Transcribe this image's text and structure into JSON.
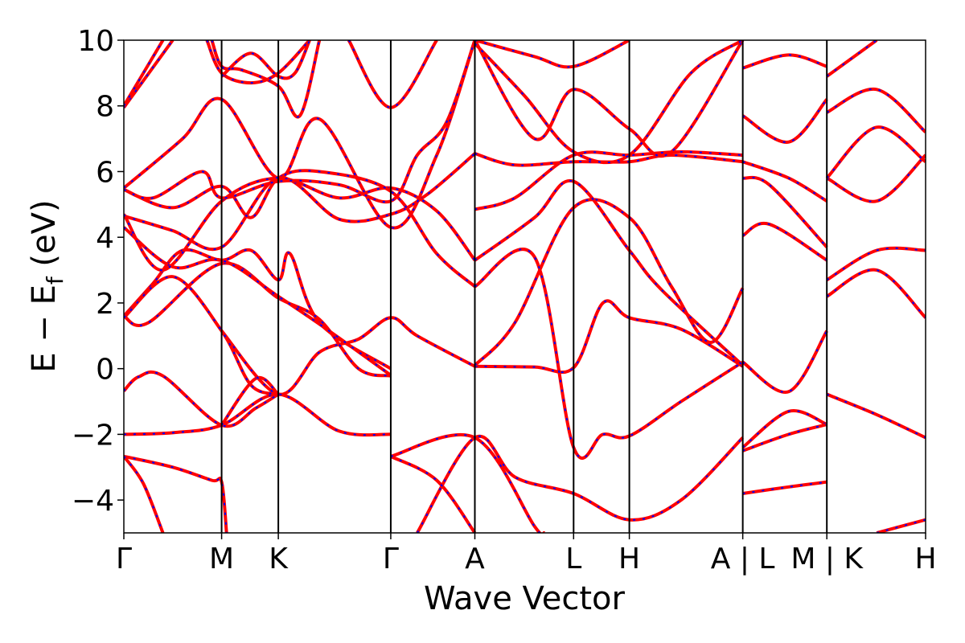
{
  "chart_data": {
    "type": "line",
    "xlabel": "Wave Vector",
    "ylabel_parts": {
      "main": "E − E",
      "sub": "f",
      "unit": " (eV)"
    },
    "ylim": [
      -5,
      10
    ],
    "yticks": [
      "−4",
      "−2",
      "0",
      "2",
      "4",
      "6",
      "8",
      "10"
    ],
    "ytick_values": [
      -4,
      -2,
      0,
      2,
      4,
      6,
      8,
      10
    ],
    "xlim": [
      0,
      8.2
    ],
    "kpath_ticks": [
      {
        "label": "Γ",
        "x": 0.0
      },
      {
        "label": "M",
        "x": 1.0
      },
      {
        "label": "K",
        "x": 1.58
      },
      {
        "label": "Γ",
        "x": 2.73
      },
      {
        "label": "A",
        "x": 3.59
      },
      {
        "label": "L",
        "x": 4.6
      },
      {
        "label": "H",
        "x": 5.17
      },
      {
        "label": "A | L",
        "x": 6.33
      },
      {
        "label": "M | K",
        "x": 7.19
      },
      {
        "label": "H",
        "x": 8.2
      }
    ],
    "colors": {
      "band_primary": "#ff0000",
      "band_overlay": "#0000ff",
      "vline": "#000000"
    },
    "series": [
      {
        "points": [
          [
            0,
            -2.0
          ],
          [
            0.5,
            -1.95
          ],
          [
            1.0,
            -1.72
          ],
          [
            1.58,
            -0.78
          ],
          [
            2.2,
            -1.9
          ],
          [
            2.73,
            -2.0
          ]
        ]
      },
      {
        "points": [
          [
            0,
            -0.68
          ],
          [
            0.15,
            -0.25
          ],
          [
            0.4,
            -0.22
          ],
          [
            1.0,
            -1.72
          ],
          [
            1.35,
            -1.2
          ],
          [
            1.58,
            -0.78
          ]
        ]
      },
      {
        "points": [
          [
            1.0,
            -1.72
          ],
          [
            1.35,
            -0.3
          ],
          [
            1.58,
            -0.78
          ]
        ]
      },
      {
        "points": [
          [
            0,
            -2.67
          ],
          [
            0.5,
            -3.0
          ],
          [
            0.9,
            -3.4
          ],
          [
            1.0,
            -3.45
          ],
          [
            1.05,
            -5.0
          ]
        ]
      },
      {
        "points": [
          [
            0,
            -2.67
          ],
          [
            0.2,
            -3.5
          ],
          [
            0.4,
            -5.0
          ]
        ]
      },
      {
        "points": [
          [
            1.0,
            1.15
          ],
          [
            1.58,
            -0.78
          ],
          [
            2.0,
            0.5
          ],
          [
            2.4,
            0.9
          ],
          [
            2.73,
            1.55
          ],
          [
            3.0,
            1.0
          ],
          [
            3.59,
            0.07
          ]
        ]
      },
      {
        "points": [
          [
            0,
            1.6
          ],
          [
            0.3,
            2.6
          ],
          [
            0.6,
            3.6
          ],
          [
            1.0,
            3.3
          ],
          [
            1.3,
            3.6
          ],
          [
            1.58,
            2.7
          ],
          [
            1.7,
            3.5
          ],
          [
            2.0,
            1.4
          ],
          [
            2.73,
            0.0
          ]
        ]
      },
      {
        "points": [
          [
            0,
            1.6
          ],
          [
            0.25,
            1.4
          ],
          [
            1.0,
            3.2
          ],
          [
            1.58,
            2.15
          ],
          [
            2.0,
            1.5
          ],
          [
            2.4,
            0.0
          ],
          [
            2.73,
            -0.22
          ]
        ]
      },
      {
        "points": [
          [
            0,
            1.55
          ],
          [
            0.5,
            2.8
          ],
          [
            1.0,
            1.15
          ],
          [
            1.3,
            -0.5
          ],
          [
            1.58,
            -0.78
          ]
        ]
      },
      {
        "points": [
          [
            0,
            4.3
          ],
          [
            0.5,
            3.1
          ],
          [
            1.0,
            3.3
          ],
          [
            1.58,
            2.2
          ],
          [
            2.1,
            1.15
          ],
          [
            2.73,
            -0.2
          ]
        ]
      },
      {
        "points": [
          [
            0,
            4.65
          ],
          [
            0.5,
            4.2
          ],
          [
            1.0,
            3.7
          ],
          [
            1.58,
            5.8
          ],
          [
            2.2,
            4.55
          ],
          [
            2.73,
            4.7
          ],
          [
            3.1,
            5.3
          ],
          [
            3.59,
            6.55
          ]
        ]
      },
      {
        "points": [
          [
            0,
            4.7
          ],
          [
            0.4,
            3.0
          ],
          [
            1.0,
            5.1
          ],
          [
            1.58,
            5.8
          ],
          [
            2.2,
            5.2
          ],
          [
            2.73,
            5.5
          ],
          [
            3.2,
            4.8
          ],
          [
            3.59,
            3.3
          ]
        ]
      },
      {
        "points": [
          [
            0,
            5.45
          ],
          [
            0.5,
            4.9
          ],
          [
            1.0,
            5.55
          ],
          [
            1.3,
            4.6
          ],
          [
            1.58,
            5.8
          ],
          [
            2.0,
            6.0
          ],
          [
            2.73,
            5.4
          ],
          [
            3.2,
            3.5
          ],
          [
            3.59,
            2.5
          ]
        ]
      },
      {
        "points": [
          [
            0,
            5.5
          ],
          [
            0.6,
            7.0
          ],
          [
            1.0,
            8.2
          ],
          [
            1.58,
            5.8
          ],
          [
            2.0,
            7.6
          ],
          [
            2.73,
            4.3
          ],
          [
            3.2,
            6.5
          ],
          [
            3.59,
            10.0
          ]
        ]
      },
      {
        "points": [
          [
            0,
            5.45
          ],
          [
            0.3,
            5.2
          ],
          [
            0.8,
            6.0
          ],
          [
            1.0,
            5.2
          ],
          [
            1.58,
            5.7
          ],
          [
            2.2,
            5.6
          ],
          [
            2.73,
            5.1
          ],
          [
            3.0,
            6.5
          ],
          [
            3.3,
            7.5
          ],
          [
            3.59,
            10.0
          ]
        ]
      },
      {
        "points": [
          [
            0,
            7.95
          ],
          [
            0.5,
            10.0
          ]
        ]
      },
      {
        "points": [
          [
            0,
            8.0
          ],
          [
            0.4,
            10.0
          ]
        ]
      },
      {
        "points": [
          [
            0.9,
            10.0
          ],
          [
            1.0,
            9.2
          ],
          [
            1.2,
            9.1
          ],
          [
            1.58,
            8.6
          ],
          [
            1.8,
            7.7
          ],
          [
            2.0,
            10.0
          ]
        ]
      },
      {
        "points": [
          [
            0.85,
            10.0
          ],
          [
            1.0,
            9.0
          ],
          [
            1.3,
            8.7
          ],
          [
            1.58,
            9.0
          ],
          [
            1.9,
            10.0
          ]
        ]
      },
      {
        "points": [
          [
            1.0,
            8.9
          ],
          [
            1.3,
            9.6
          ],
          [
            1.58,
            8.9
          ],
          [
            1.75,
            9.0
          ],
          [
            1.9,
            10.0
          ]
        ]
      },
      {
        "points": [
          [
            2.3,
            10.0
          ],
          [
            2.73,
            7.95
          ],
          [
            3.2,
            10.0
          ]
        ]
      },
      {
        "points": [
          [
            3.0,
            -5.0
          ],
          [
            3.59,
            -2.1
          ],
          [
            4.0,
            -3.3
          ],
          [
            4.6,
            -3.8
          ],
          [
            5.17,
            -4.6
          ],
          [
            5.7,
            -4.0
          ],
          [
            6.33,
            -2.1
          ]
        ]
      },
      {
        "points": [
          [
            2.73,
            -2.67
          ],
          [
            3.2,
            -3.4
          ],
          [
            3.59,
            -5.0
          ]
        ]
      },
      {
        "points": [
          [
            2.73,
            -2.67
          ],
          [
            3.59,
            -2.1
          ],
          [
            4.2,
            -4.8
          ],
          [
            4.3,
            -5.0
          ]
        ]
      },
      {
        "points": [
          [
            3.59,
            0.07
          ],
          [
            4.2,
            0.05
          ],
          [
            4.6,
            0.03
          ],
          [
            4.9,
            2.0
          ],
          [
            5.17,
            1.55
          ],
          [
            5.7,
            1.2
          ],
          [
            6.33,
            0.07
          ]
        ]
      },
      {
        "points": [
          [
            3.59,
            0.1
          ],
          [
            4.0,
            1.4
          ],
          [
            4.6,
            4.9
          ],
          [
            5.17,
            4.6
          ],
          [
            5.6,
            2.5
          ],
          [
            6.0,
            0.8
          ],
          [
            6.33,
            2.45
          ]
        ]
      },
      {
        "points": [
          [
            3.59,
            2.5
          ],
          [
            4.2,
            3.4
          ],
          [
            4.6,
            -2.4
          ],
          [
            4.9,
            -2.0
          ],
          [
            5.17,
            -2.05
          ],
          [
            5.7,
            -1.0
          ],
          [
            6.33,
            0.2
          ]
        ]
      },
      {
        "points": [
          [
            3.59,
            3.3
          ],
          [
            4.2,
            4.6
          ],
          [
            4.6,
            5.7
          ],
          [
            5.17,
            3.6
          ],
          [
            5.5,
            2.4
          ],
          [
            6.33,
            0.1
          ]
        ]
      },
      {
        "points": [
          [
            3.59,
            4.85
          ],
          [
            4.0,
            5.2
          ],
          [
            4.6,
            6.5
          ],
          [
            5.17,
            6.5
          ],
          [
            5.7,
            6.6
          ],
          [
            6.33,
            6.5
          ]
        ]
      },
      {
        "points": [
          [
            3.59,
            6.55
          ],
          [
            4.0,
            6.2
          ],
          [
            4.6,
            6.3
          ],
          [
            5.17,
            6.3
          ],
          [
            5.6,
            6.5
          ],
          [
            6.33,
            6.3
          ]
        ]
      },
      {
        "points": [
          [
            3.59,
            10.0
          ],
          [
            4.2,
            7.0
          ],
          [
            4.6,
            8.5
          ],
          [
            5.17,
            7.3
          ],
          [
            5.6,
            6.6
          ],
          [
            6.33,
            10.0
          ]
        ]
      },
      {
        "points": [
          [
            3.59,
            10.0
          ],
          [
            4.2,
            9.5
          ],
          [
            4.6,
            9.2
          ],
          [
            5.17,
            10.0
          ]
        ]
      },
      {
        "points": [
          [
            3.59,
            9.9
          ],
          [
            4.1,
            8.3
          ],
          [
            4.6,
            6.6
          ],
          [
            5.17,
            6.5
          ],
          [
            5.8,
            9.0
          ],
          [
            6.33,
            10.0
          ]
        ]
      },
      {
        "points": [
          [
            6.33,
            -3.8
          ],
          [
            6.8,
            -3.6
          ],
          [
            7.19,
            -3.45
          ]
        ]
      },
      {
        "points": [
          [
            6.33,
            -2.4
          ],
          [
            6.8,
            -1.3
          ],
          [
            7.19,
            -1.7
          ]
        ]
      },
      {
        "points": [
          [
            6.33,
            -2.5
          ],
          [
            6.8,
            -2.0
          ],
          [
            7.19,
            -1.7
          ]
        ]
      },
      {
        "points": [
          [
            6.33,
            0.2
          ],
          [
            6.8,
            -0.7
          ],
          [
            7.19,
            1.15
          ]
        ]
      },
      {
        "points": [
          [
            6.33,
            4.05
          ],
          [
            6.6,
            4.4
          ],
          [
            7.19,
            3.3
          ]
        ]
      },
      {
        "points": [
          [
            6.33,
            5.8
          ],
          [
            6.6,
            5.6
          ],
          [
            7.19,
            3.7
          ]
        ]
      },
      {
        "points": [
          [
            6.33,
            6.3
          ],
          [
            6.8,
            5.8
          ],
          [
            7.19,
            5.1
          ]
        ]
      },
      {
        "points": [
          [
            6.33,
            7.7
          ],
          [
            6.8,
            6.9
          ],
          [
            7.19,
            8.2
          ]
        ]
      },
      {
        "points": [
          [
            6.33,
            9.15
          ],
          [
            6.8,
            9.55
          ],
          [
            7.19,
            9.2
          ]
        ]
      },
      {
        "points": [
          [
            7.19,
            -0.78
          ],
          [
            7.7,
            -1.4
          ],
          [
            8.2,
            -2.1
          ]
        ]
      },
      {
        "points": [
          [
            7.19,
            2.2
          ],
          [
            7.7,
            3.0
          ],
          [
            8.2,
            1.55
          ]
        ]
      },
      {
        "points": [
          [
            7.19,
            2.7
          ],
          [
            7.7,
            3.6
          ],
          [
            8.2,
            3.6
          ]
        ]
      },
      {
        "points": [
          [
            7.19,
            5.8
          ],
          [
            7.7,
            5.1
          ],
          [
            8.2,
            6.5
          ]
        ]
      },
      {
        "points": [
          [
            7.19,
            5.8
          ],
          [
            7.7,
            7.35
          ],
          [
            8.2,
            6.3
          ]
        ]
      },
      {
        "points": [
          [
            7.19,
            7.8
          ],
          [
            7.7,
            8.5
          ],
          [
            8.2,
            7.2
          ]
        ]
      },
      {
        "points": [
          [
            7.19,
            8.9
          ],
          [
            7.7,
            10.0
          ]
        ]
      },
      {
        "points": [
          [
            7.7,
            -5.0
          ],
          [
            8.2,
            -4.6
          ]
        ]
      }
    ]
  }
}
